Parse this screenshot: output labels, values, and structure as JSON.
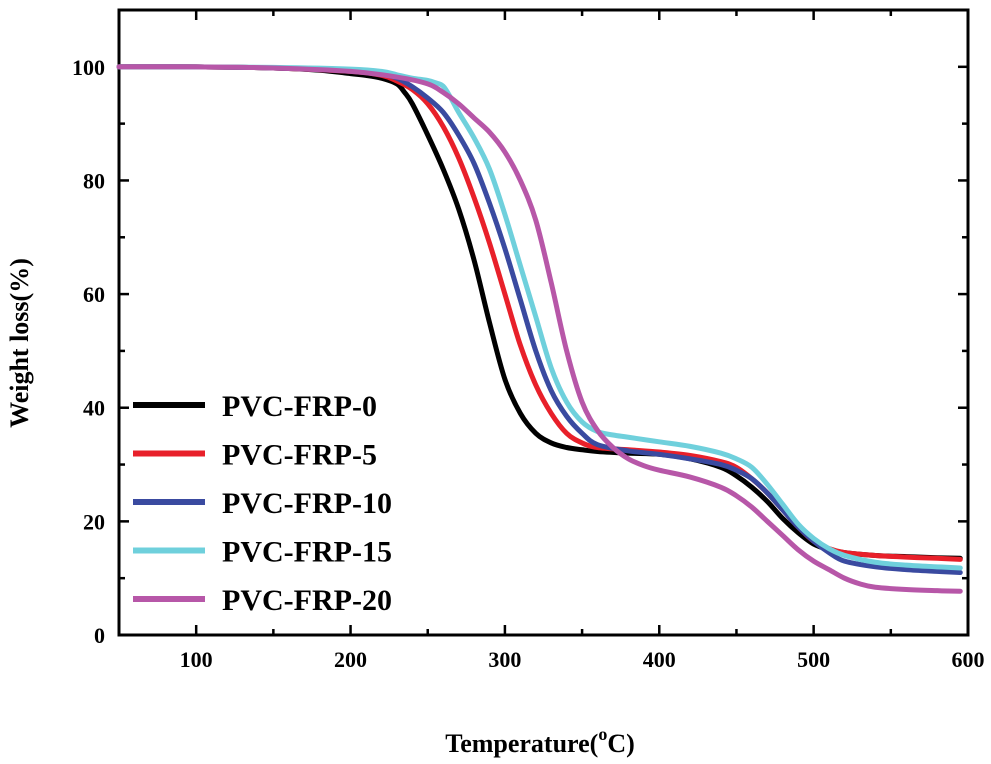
{
  "chart_data": {
    "type": "line",
    "title": "",
    "xlabel": "Temperature(",
    "xlabel_sup": "o",
    "xlabel_suffix": "C)",
    "ylabel": "Weight loss(%)",
    "xlim": [
      50,
      600
    ],
    "ylim": [
      0,
      110
    ],
    "xticks": [
      100,
      200,
      300,
      400,
      500,
      600
    ],
    "yticks": [
      0,
      20,
      40,
      60,
      80,
      100
    ],
    "legend_position": "bottom-left",
    "series": [
      {
        "name": "PVC-FRP-0",
        "color": "#000000",
        "x": [
          50,
          100,
          150,
          180,
          200,
          210,
          220,
          230,
          235,
          240,
          250,
          260,
          270,
          280,
          290,
          300,
          310,
          320,
          330,
          340,
          350,
          360,
          380,
          400,
          420,
          440,
          450,
          460,
          470,
          480,
          490,
          500,
          510,
          520,
          540,
          560,
          580,
          595
        ],
        "y": [
          100,
          100,
          99.8,
          99.4,
          98.8,
          98.5,
          98,
          97,
          95.5,
          93.5,
          88,
          82,
          75,
          66,
          55,
          45,
          39,
          35.5,
          33.8,
          33,
          32.6,
          32.3,
          32,
          31.8,
          31,
          29.5,
          28,
          26,
          23.5,
          20.5,
          18,
          16,
          15,
          14.5,
          14,
          13.8,
          13.6,
          13.5
        ]
      },
      {
        "name": "PVC-FRP-5",
        "color": "#e8202a",
        "x": [
          50,
          100,
          150,
          200,
          220,
          230,
          240,
          250,
          260,
          270,
          280,
          290,
          300,
          310,
          320,
          330,
          340,
          350,
          360,
          380,
          400,
          420,
          440,
          450,
          460,
          470,
          480,
          490,
          500,
          510,
          520,
          540,
          560,
          580,
          595
        ],
        "y": [
          100,
          100,
          99.8,
          99.2,
          98.5,
          97.5,
          96,
          93.5,
          89.5,
          84,
          77,
          69,
          60,
          51,
          44,
          39,
          35.5,
          33.8,
          33,
          32.6,
          32.2,
          31.6,
          30.5,
          29.5,
          27.5,
          25,
          22,
          19,
          16.5,
          15.2,
          14.5,
          14,
          13.7,
          13.5,
          13.3
        ]
      },
      {
        "name": "PVC-FRP-10",
        "color": "#3a4aa0",
        "x": [
          50,
          100,
          150,
          200,
          220,
          230,
          240,
          250,
          260,
          270,
          280,
          290,
          300,
          310,
          320,
          330,
          340,
          350,
          360,
          380,
          400,
          420,
          440,
          450,
          460,
          470,
          480,
          490,
          500,
          510,
          520,
          540,
          560,
          580,
          595
        ],
        "y": [
          100,
          100,
          99.8,
          99.3,
          98.7,
          98,
          96.5,
          94.5,
          92,
          88,
          83,
          76,
          68,
          59,
          50,
          43,
          38.5,
          35.5,
          33.5,
          32.4,
          31.8,
          31,
          30,
          29,
          27.5,
          25,
          22,
          19,
          16.5,
          14.5,
          13,
          12,
          11.5,
          11.2,
          11
        ]
      },
      {
        "name": "PVC-FRP-15",
        "color": "#6fd0dc",
        "x": [
          50,
          100,
          150,
          200,
          220,
          230,
          240,
          250,
          255,
          260,
          265,
          270,
          280,
          290,
          300,
          310,
          320,
          330,
          340,
          350,
          360,
          370,
          380,
          400,
          420,
          440,
          450,
          460,
          470,
          480,
          490,
          500,
          510,
          520,
          540,
          560,
          580,
          595
        ],
        "y": [
          100,
          100,
          99.9,
          99.6,
          99.2,
          98.6,
          98,
          97.6,
          97.2,
          96.6,
          94.5,
          92,
          87.5,
          82,
          74,
          65,
          56,
          47,
          41,
          37.5,
          35.8,
          35.2,
          34.8,
          34,
          33.2,
          32,
          31,
          29.5,
          26.5,
          23,
          19.5,
          17,
          15.2,
          14,
          12.8,
          12.3,
          12,
          11.8
        ]
      },
      {
        "name": "PVC-FRP-20",
        "color": "#b757a8",
        "x": [
          50,
          100,
          150,
          200,
          230,
          250,
          260,
          270,
          280,
          290,
          300,
          310,
          320,
          330,
          340,
          350,
          360,
          370,
          380,
          390,
          400,
          420,
          440,
          450,
          460,
          470,
          480,
          490,
          500,
          510,
          520,
          530,
          540,
          560,
          580,
          595
        ],
        "y": [
          100,
          100,
          99.8,
          99.2,
          98.2,
          97,
          95.5,
          93.5,
          91,
          88.5,
          85,
          80,
          73,
          62,
          50,
          41,
          36,
          33,
          31,
          29.8,
          29,
          27.8,
          26,
          24.5,
          22.5,
          20,
          17.5,
          15,
          13,
          11.5,
          10,
          9,
          8.4,
          8,
          7.8,
          7.7
        ]
      }
    ]
  }
}
